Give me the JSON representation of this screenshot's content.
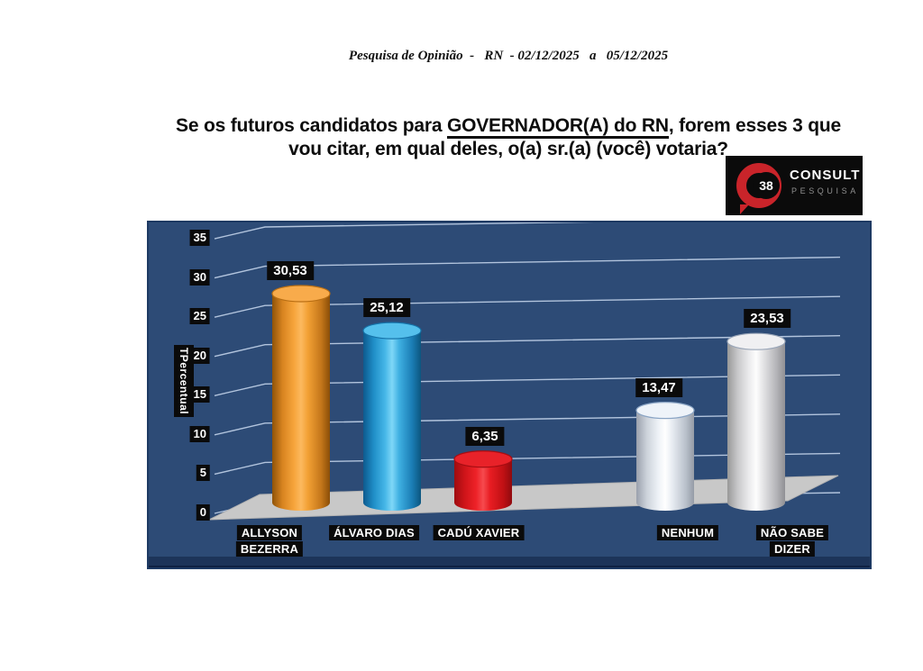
{
  "header": {
    "title": "Pesquisa de Opinião  -   RN  - 02/12/2025   a   05/12/2025"
  },
  "question": {
    "line1_pre": "Se os futuros candidatos para ",
    "line1_underlined": "GOVERNADOR(A) do RN",
    "line1_post": ", forem esses 3 que",
    "line2": "vou citar, em qual deles, o(a) sr.(a) (você) votaria?"
  },
  "logo": {
    "number": "38",
    "name": "CONSULT",
    "subtitle": "PESQUISA"
  },
  "chart_data": {
    "type": "bar",
    "style": "3d-cylinder",
    "title": "Se os futuros candidatos para GOVERNADOR(A) do RN, forem esses 3 que vou citar, em qual deles, o(a) sr.(a) (você) votaria?",
    "categories": [
      "ALLYSON BEZERRA",
      "ÁLVARO DIAS",
      "CADÚ XAVIER",
      "NENHUM",
      "NÃO SABE DIZER"
    ],
    "category_display_lines": [
      [
        "ALLYSON",
        "BEZERRA"
      ],
      [
        "ÁLVARO DIAS"
      ],
      [
        "CADÚ XAVIER"
      ],
      [
        "NENHUM"
      ],
      [
        "NÃO SABE",
        "DIZER"
      ]
    ],
    "values": [
      30.53,
      25.12,
      6.35,
      13.47,
      23.53
    ],
    "value_labels": [
      "30,53",
      "25,12",
      "6,35",
      "13,47",
      "23,53"
    ],
    "bar_colors": [
      "#f5a238",
      "#46b7e8",
      "#e8191f",
      "#ffffff",
      "#f0f0f2"
    ],
    "ylabel": "TPercentual",
    "yticks": [
      0,
      5,
      10,
      15,
      20,
      25,
      30,
      35
    ],
    "ylim": [
      0,
      35
    ],
    "grid": true,
    "legend": "none",
    "x_slots": [
      0,
      1,
      2,
      4,
      5
    ],
    "background_color": "#2d4b76",
    "gridline_color": "#b2c4dd",
    "floor_color": "#c8c8c8",
    "label_box_color": "#0a0a0a",
    "label_text_color": "#ffffff"
  }
}
